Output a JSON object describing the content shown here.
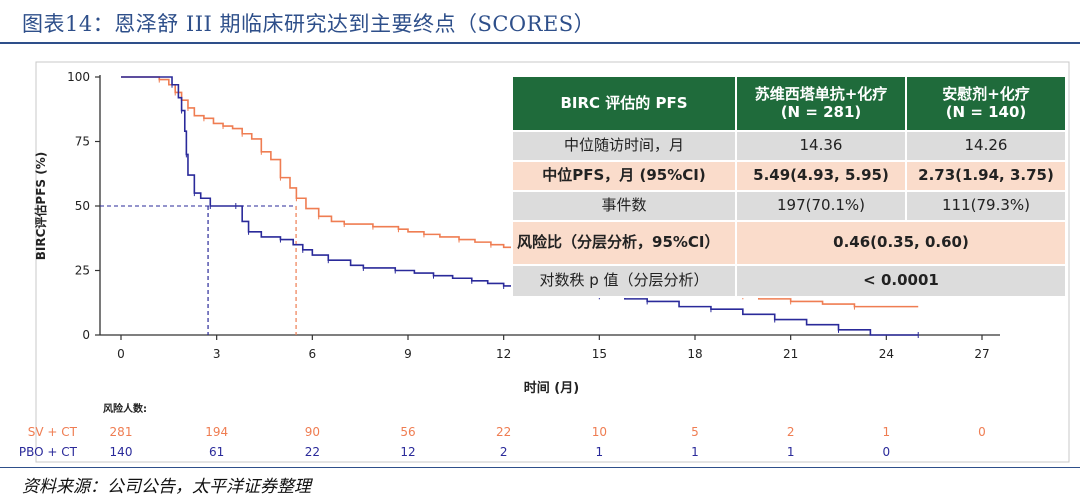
{
  "title": "图表14：恩泽舒 III 期临床研究达到主要终点（SCORES）",
  "source": "资料来源：公司公告，太平洋证券整理",
  "colors": {
    "sv": "#ef7d52",
    "pbo": "#2a2a9a",
    "header": "#1f6b3b",
    "gray": "#dcdcdc",
    "peach": "#fadccb"
  },
  "table": {
    "header": [
      "BIRC 评估的 PFS",
      "苏维西塔单抗+化疗\n(N = 281)",
      "安慰剂+化疗\n(N = 140)"
    ],
    "rows": [
      {
        "label": "中位随访时间，月",
        "c1": "14.36",
        "c2": "14.26"
      },
      {
        "label": "中位PFS，月 (95%CI)",
        "c1": "5.49(4.93, 5.95)",
        "c2": "2.73(1.94, 3.75)"
      },
      {
        "label": "事件数",
        "c1": "197(70.1%)",
        "c2": "111(79.3%)"
      },
      {
        "label": "风险比（分层分析，95%CI）",
        "merged": "0.46(0.35, 0.60)"
      },
      {
        "label": "对数秩 p 值（分层分析）",
        "merged": "< 0.0001"
      }
    ]
  },
  "chart_data": {
    "type": "line",
    "xlabel": "时间 (月)",
    "ylabel": "BIRC评估PFS (%)",
    "xlim": [
      0,
      27
    ],
    "ylim": [
      0,
      100
    ],
    "xticks": [
      0,
      3,
      6,
      9,
      12,
      15,
      18,
      21,
      24,
      27
    ],
    "yticks": [
      0,
      25,
      50,
      75,
      100
    ],
    "medians": [
      {
        "series": "SV + CT",
        "x": 5.49,
        "y": 50
      },
      {
        "series": "PBO + CT",
        "x": 2.73,
        "y": 50
      }
    ],
    "series": [
      {
        "name": "SV + CT",
        "points": [
          [
            0,
            100
          ],
          [
            0.9,
            100
          ],
          [
            1.2,
            99
          ],
          [
            1.5,
            97
          ],
          [
            1.7,
            94
          ],
          [
            1.9,
            91
          ],
          [
            2.1,
            88
          ],
          [
            2.3,
            85
          ],
          [
            2.6,
            84
          ],
          [
            2.9,
            82
          ],
          [
            3.2,
            81
          ],
          [
            3.5,
            80
          ],
          [
            3.8,
            78
          ],
          [
            4.1,
            76
          ],
          [
            4.4,
            71
          ],
          [
            4.7,
            68
          ],
          [
            5.0,
            61
          ],
          [
            5.3,
            57
          ],
          [
            5.5,
            53
          ],
          [
            5.8,
            49
          ],
          [
            6.2,
            46
          ],
          [
            6.6,
            44
          ],
          [
            7.0,
            43
          ],
          [
            7.5,
            43
          ],
          [
            7.9,
            42
          ],
          [
            8.3,
            42
          ],
          [
            8.7,
            41
          ],
          [
            9.0,
            40
          ],
          [
            9.5,
            39
          ],
          [
            10.0,
            38
          ],
          [
            10.6,
            37
          ],
          [
            11.1,
            36
          ],
          [
            11.6,
            35
          ],
          [
            12.0,
            34
          ],
          [
            12.3,
            33
          ],
          [
            13.0,
            32
          ],
          [
            13.6,
            31
          ],
          [
            14.0,
            30
          ],
          [
            14.5,
            29
          ],
          [
            15.0,
            28
          ],
          [
            15.5,
            27
          ],
          [
            16.0,
            25
          ],
          [
            16.5,
            23
          ],
          [
            17.0,
            22
          ],
          [
            17.5,
            20
          ],
          [
            18.0,
            19
          ],
          [
            18.5,
            17
          ],
          [
            19.0,
            16
          ],
          [
            19.5,
            15
          ],
          [
            20.0,
            14
          ],
          [
            21.0,
            13
          ],
          [
            22.0,
            12
          ],
          [
            23.0,
            11
          ],
          [
            25.0,
            11
          ]
        ]
      },
      {
        "name": "PBO + CT",
        "points": [
          [
            0,
            100
          ],
          [
            1.3,
            100
          ],
          [
            1.6,
            97
          ],
          [
            1.8,
            92
          ],
          [
            1.9,
            87
          ],
          [
            2.0,
            79
          ],
          [
            2.05,
            70
          ],
          [
            2.1,
            62
          ],
          [
            2.3,
            55
          ],
          [
            2.5,
            53
          ],
          [
            2.8,
            50
          ],
          [
            3.2,
            50
          ],
          [
            3.6,
            50
          ],
          [
            3.8,
            44
          ],
          [
            4.0,
            40
          ],
          [
            4.4,
            38
          ],
          [
            5.0,
            37
          ],
          [
            5.4,
            35
          ],
          [
            5.7,
            33
          ],
          [
            6.0,
            31
          ],
          [
            6.5,
            29
          ],
          [
            7.2,
            27
          ],
          [
            7.6,
            26
          ],
          [
            8.0,
            26
          ],
          [
            8.6,
            25
          ],
          [
            9.2,
            24
          ],
          [
            9.8,
            23
          ],
          [
            10.4,
            22
          ],
          [
            11.0,
            21
          ],
          [
            11.5,
            20
          ],
          [
            12.0,
            19
          ],
          [
            12.8,
            18
          ],
          [
            13.5,
            17
          ],
          [
            14.2,
            16
          ],
          [
            15.0,
            15
          ],
          [
            15.8,
            14
          ],
          [
            16.5,
            13
          ],
          [
            17.5,
            11
          ],
          [
            18.5,
            10
          ],
          [
            19.5,
            8
          ],
          [
            20.5,
            6
          ],
          [
            21.5,
            4
          ],
          [
            22.5,
            2
          ],
          [
            23.5,
            0
          ],
          [
            25.0,
            0
          ]
        ]
      }
    ]
  },
  "risk_table": {
    "title": "风险人数:",
    "rows": [
      {
        "label": "SV + CT",
        "values": [
          281,
          194,
          90,
          56,
          22,
          10,
          5,
          2,
          1,
          0
        ]
      },
      {
        "label": "PBO + CT",
        "values": [
          140,
          61,
          22,
          12,
          2,
          1,
          1,
          1,
          0
        ]
      }
    ]
  }
}
